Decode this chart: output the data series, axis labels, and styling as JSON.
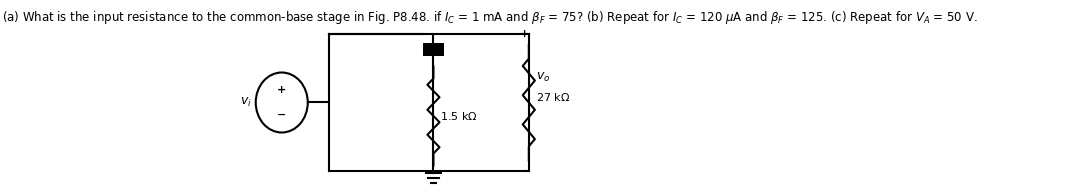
{
  "title_text": "(a) What is the input resistance to the common-base stage in Fig. P8.48. if $I_C$ = 1 mA and $\\beta_F$ = 75? (b) Repeat for $I_C$ = 120 \\muA and $\\beta_F$ = 125. (c) Repeat for $V_A$ = 50 V.",
  "fig_width": 10.76,
  "fig_height": 1.89,
  "dpi": 100,
  "bg_color": "#ffffff",
  "circuit_color": "#000000",
  "link_color": "#0000ff",
  "text_color": "#000000",
  "label_vi": "$v_i$",
  "label_15k": "1.5 k\\Omega",
  "label_27k": "27 k\\Omega",
  "label_vo": "$v_o$"
}
